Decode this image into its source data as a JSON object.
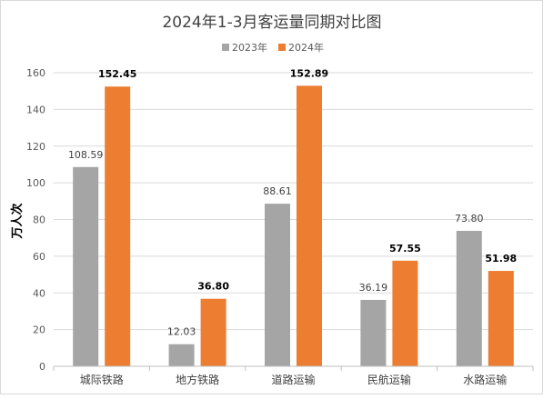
{
  "chart_data": {
    "type": "bar",
    "title": "2024年1-3月客运量同期对比图",
    "xlabel": "",
    "ylabel": "万人次",
    "ylim": [
      0,
      160
    ],
    "yticks": [
      0,
      20,
      40,
      60,
      80,
      100,
      120,
      140,
      160
    ],
    "grid": true,
    "legend_position": "top",
    "categories": [
      "城际铁路",
      "地方铁路",
      "道路运输",
      "民航运输",
      "水路运输"
    ],
    "series": [
      {
        "name": "2023年",
        "color": "#a5a5a5",
        "values": [
          108.59,
          12.03,
          88.61,
          36.19,
          73.8
        ],
        "labels": [
          "108.59",
          "12.03",
          "88.61",
          "36.19",
          "73.80"
        ]
      },
      {
        "name": "2024年",
        "color": "#ed7d31",
        "values": [
          152.45,
          36.8,
          152.89,
          57.55,
          51.98
        ],
        "labels": [
          "152.45",
          "36.80",
          "152.89",
          "57.55",
          "51.98"
        ]
      }
    ]
  }
}
